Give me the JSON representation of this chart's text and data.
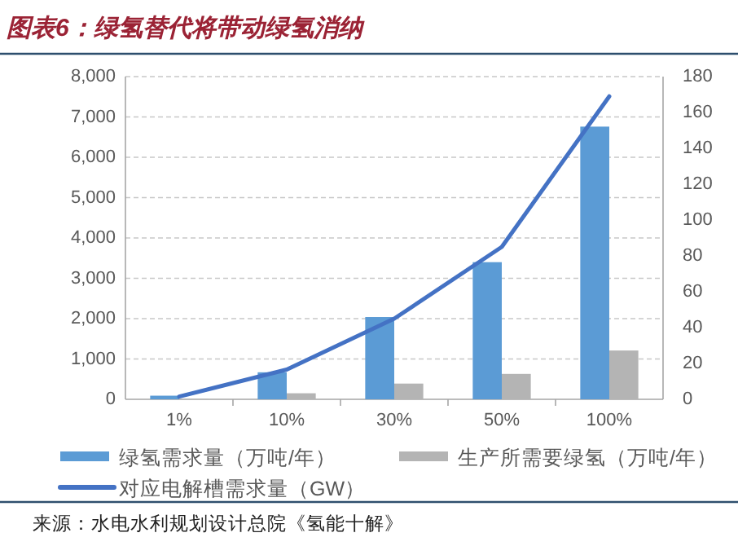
{
  "chart_data": {
    "type": "bar",
    "title": "图表6：绿氢替代将带动绿氢消纳",
    "categories": [
      "1%",
      "10%",
      "30%",
      "50%",
      "100%"
    ],
    "series": [
      {
        "name": "绿氢需求量（万吨/年）",
        "color": "#5b9bd5",
        "values": [
          90,
          670,
          2040,
          3400,
          6760
        ]
      },
      {
        "name": "生产所需要绿氢（万吨/年）",
        "color": "#b4b4b4",
        "values": [
          10,
          150,
          390,
          630,
          1210
        ]
      },
      {
        "name": "对应电解槽需求量（GW）",
        "type": "line",
        "axis": "y2",
        "color": "#4472c4",
        "values": [
          1.5,
          16.6,
          45,
          85,
          169
        ]
      }
    ],
    "ylim": [
      0,
      8000
    ],
    "yticks": [
      {
        "value": 0,
        "label": "0"
      },
      {
        "value": 1000,
        "label": "1,000"
      },
      {
        "value": 2000,
        "label": "2,000"
      },
      {
        "value": 3000,
        "label": "3,000"
      },
      {
        "value": 4000,
        "label": "4,000"
      },
      {
        "value": 5000,
        "label": "5,000"
      },
      {
        "value": 6000,
        "label": "6,000"
      },
      {
        "value": 7000,
        "label": "7,000"
      },
      {
        "value": 8000,
        "label": "8,000"
      }
    ],
    "y2lim": [
      0,
      180
    ],
    "y2ticks": [
      0,
      20,
      40,
      60,
      80,
      100,
      120,
      140,
      160,
      180
    ],
    "grid": "y",
    "legend": "bottom",
    "annotations": [
      "来源：水电水利规划设计总院《氢能十解》"
    ]
  }
}
